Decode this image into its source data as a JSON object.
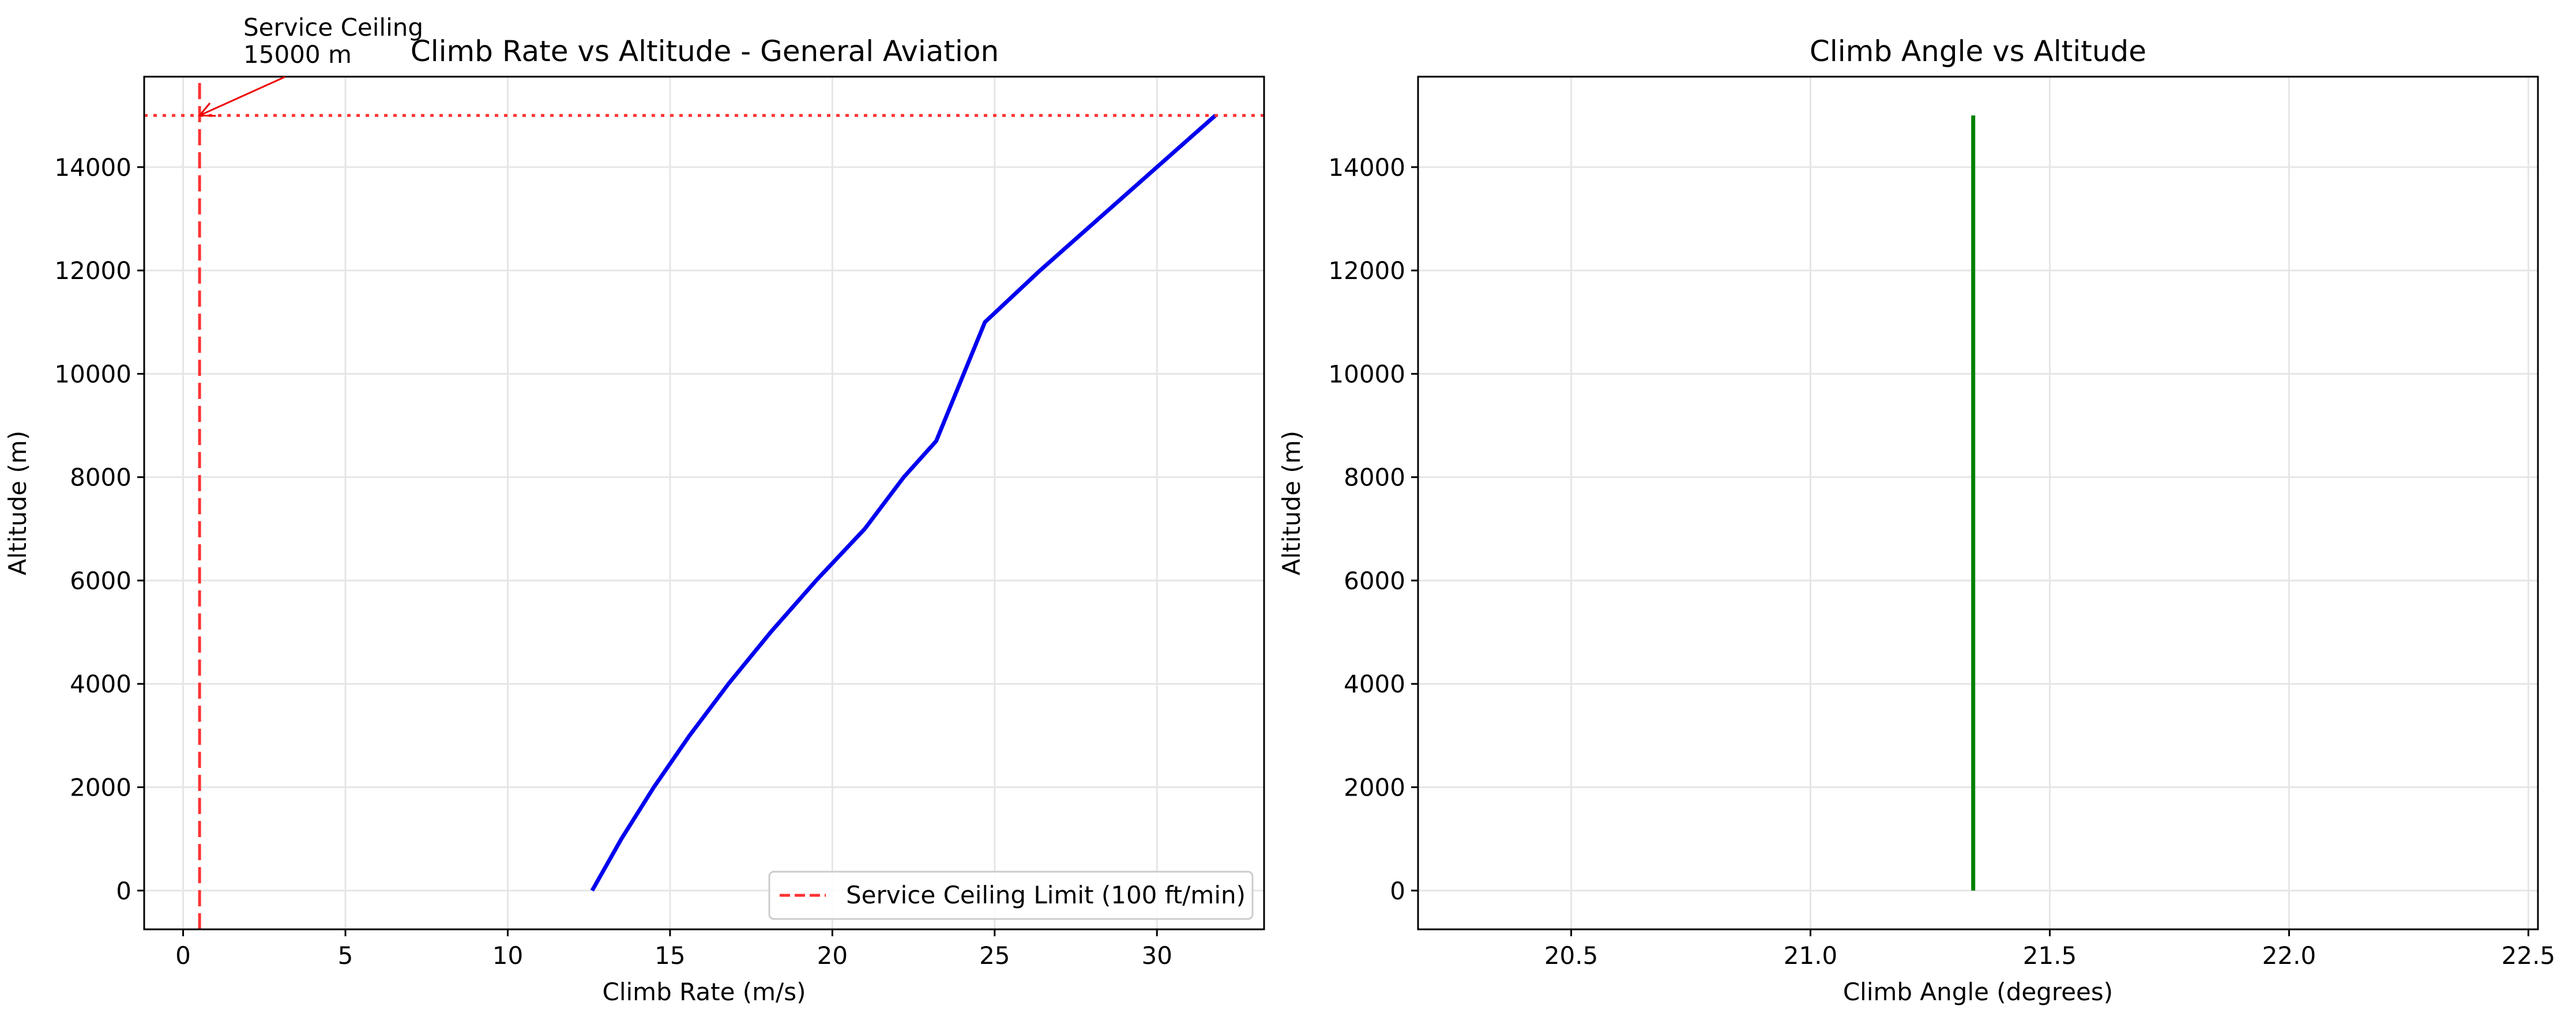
{
  "chart_data": [
    {
      "type": "line",
      "title": "Climb Rate vs Altitude - General Aviation",
      "xlabel": "Climb Rate (m/s)",
      "ylabel": "Altitude (m)",
      "xlim": [
        -1.2,
        33.3
      ],
      "ylim": [
        -750,
        15750
      ],
      "xticks": [
        "0",
        "5",
        "10",
        "15",
        "20",
        "25",
        "30"
      ],
      "yticks": [
        "0",
        "2000",
        "4000",
        "6000",
        "8000",
        "10000",
        "12000",
        "14000"
      ],
      "grid": true,
      "legend_position": "lower right",
      "series": [
        {
          "color": "#0000ee",
          "x": [
            12.6,
            13.5,
            14.5,
            15.6,
            16.8,
            18.1,
            19.5,
            21.0,
            22.2,
            23.2,
            24.7,
            26.4,
            28.2,
            30.0,
            31.8
          ],
          "y": [
            0,
            1000,
            2000,
            3000,
            4000,
            5000,
            6000,
            7000,
            8000,
            8700,
            11000,
            12000,
            13000,
            14000,
            15000
          ]
        },
        {
          "name": "Service Ceiling Limit (100 ft/min)",
          "style": "dashed",
          "color": "#ff3333",
          "x": [
            0.508,
            0.508
          ],
          "y": [
            -750,
            15750
          ]
        },
        {
          "style": "dotted",
          "color": "#ff3333",
          "x": [
            -1.2,
            33.3
          ],
          "y": [
            15000,
            15000
          ]
        }
      ],
      "annotation": {
        "line1": "Service Ceiling",
        "line2": "15000 m",
        "point": [
          0.508,
          15000
        ],
        "text_pos": [
          2.6,
          15800
        ]
      }
    },
    {
      "type": "line",
      "title": "Climb Angle vs Altitude",
      "xlabel": "Climb Angle (degrees)",
      "ylabel": "Altitude (m)",
      "xlim": [
        20.18,
        22.52
      ],
      "ylim": [
        -750,
        15750
      ],
      "xticks": [
        "20.5",
        "21.0",
        "21.5",
        "22.0",
        "22.5"
      ],
      "yticks": [
        "0",
        "2000",
        "4000",
        "6000",
        "8000",
        "10000",
        "12000",
        "14000"
      ],
      "grid": true,
      "series": [
        {
          "color": "#008000",
          "x": [
            21.34,
            21.34
          ],
          "y": [
            0,
            15000
          ]
        }
      ]
    }
  ]
}
